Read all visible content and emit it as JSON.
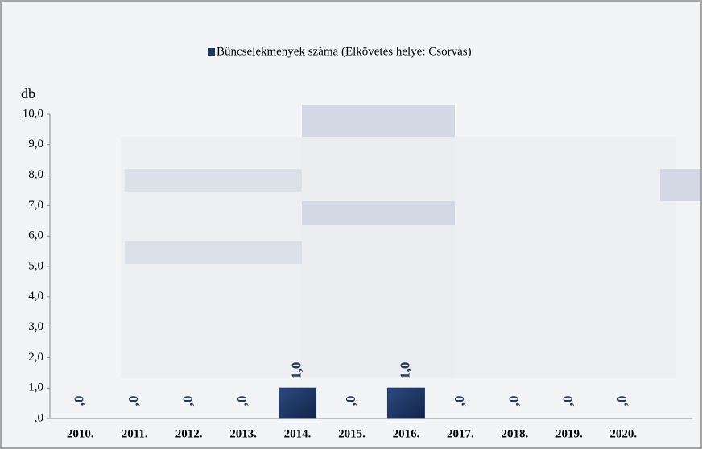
{
  "chart_data": {
    "type": "bar",
    "y_label": "db",
    "categories": [
      "2010.",
      "2011.",
      "2012.",
      "2013.",
      "2014.",
      "2015.",
      "2016.",
      "2017.",
      "2018.",
      "2019.",
      "2020."
    ],
    "series": [
      {
        "name": "Bűncselekmények száma (Elkövetés helye: Csorvás)",
        "color": "#1f3864",
        "values": [
          0,
          0,
          0,
          0,
          1,
          0,
          1,
          0,
          0,
          0,
          0
        ],
        "value_labels": [
          ",0",
          ",0",
          ",0",
          ",0",
          "1,0",
          ",0",
          "1,0",
          ",0",
          ",0",
          ",0",
          ",0"
        ]
      }
    ],
    "ylim": [
      0,
      10
    ],
    "yticks": [
      {
        "value": 0,
        "label": ",0"
      },
      {
        "value": 1,
        "label": "1,0"
      },
      {
        "value": 2,
        "label": "2,0"
      },
      {
        "value": 3,
        "label": "3,0"
      },
      {
        "value": 4,
        "label": "4,0"
      },
      {
        "value": 5,
        "label": "5,0"
      },
      {
        "value": 6,
        "label": "6,0"
      },
      {
        "value": 7,
        "label": "7,0"
      },
      {
        "value": 8,
        "label": "8,0"
      },
      {
        "value": 9,
        "label": "9,0"
      },
      {
        "value": 10,
        "label": "10,0"
      }
    ],
    "legend": "top"
  }
}
